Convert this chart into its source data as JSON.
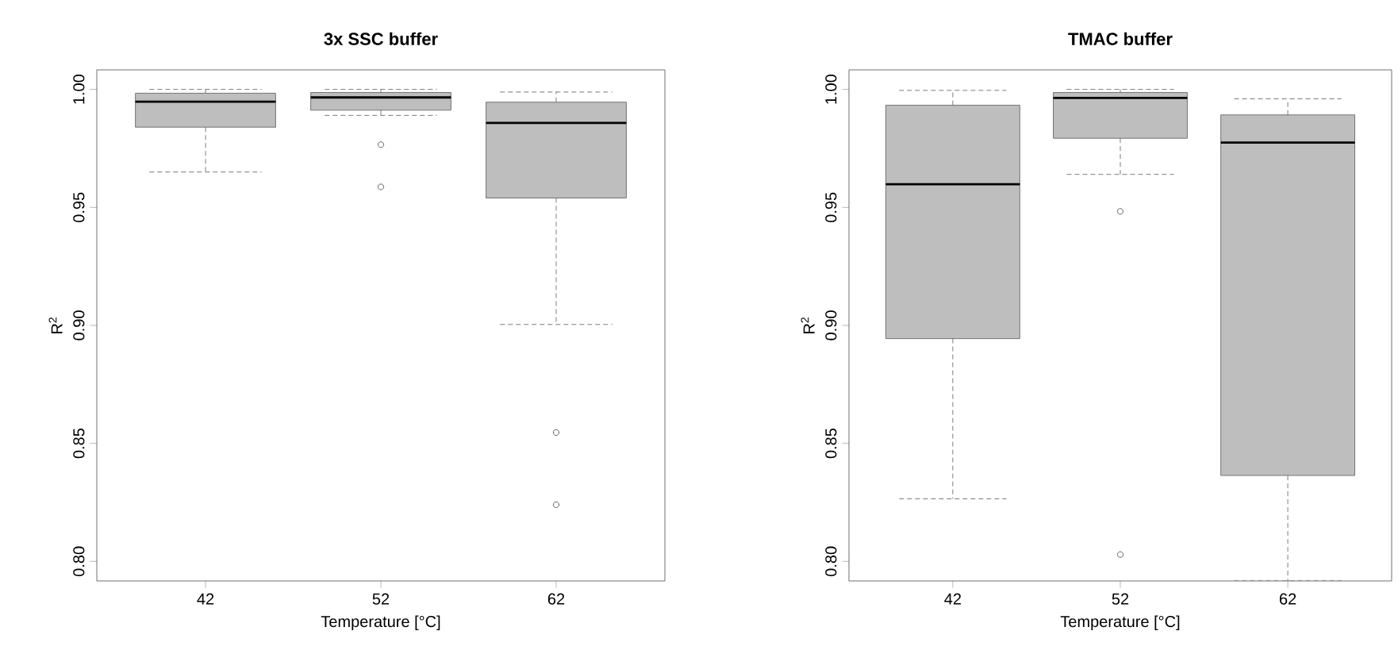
{
  "chart_data": [
    {
      "type": "box",
      "title": "3x SSC buffer",
      "xlabel": "Temperature [°C]",
      "ylabel": "R$^{2}$",
      "categories": [
        "42",
        "52",
        "62"
      ],
      "color": "#bebebe",
      "ylim": [
        0.7917,
        1.0083
      ],
      "yticks": [
        {
          "value": 0.8,
          "label": "0.80"
        },
        {
          "value": 0.85,
          "label": "0.85"
        },
        {
          "value": 0.9,
          "label": "0.90"
        },
        {
          "value": 0.95,
          "label": "0.95"
        },
        {
          "value": 1.0,
          "label": "1.00"
        }
      ],
      "boxes": [
        {
          "low": 0.965,
          "q1": 0.984,
          "median": 0.9948,
          "q3": 0.9984,
          "high": 1.0
        },
        {
          "low": 0.989,
          "q1": 0.9912,
          "median": 0.9966,
          "q3": 0.9987,
          "high": 1.0,
          "outliers": [
            0.9766,
            0.9587
          ]
        },
        {
          "low": 0.9004,
          "q1": 0.954,
          "median": 0.9858,
          "q3": 0.9946,
          "high": 0.9989,
          "outliers": [
            0.8546,
            0.824
          ]
        }
      ]
    },
    {
      "type": "box",
      "title": "TMAC buffer",
      "xlabel": "Temperature [°C]",
      "ylabel": "R$^{2}$",
      "categories": [
        "42",
        "52",
        "62"
      ],
      "color": "#bebebe",
      "ylim": [
        0.7917,
        1.0083
      ],
      "yticks": [
        {
          "value": 0.8,
          "label": "0.80"
        },
        {
          "value": 0.85,
          "label": "0.85"
        },
        {
          "value": 0.9,
          "label": "0.90"
        },
        {
          "value": 0.95,
          "label": "0.95"
        },
        {
          "value": 1.0,
          "label": "1.00"
        }
      ],
      "boxes": [
        {
          "low": 0.8265,
          "q1": 0.8944,
          "median": 0.9598,
          "q3": 0.9933,
          "high": 0.9996
        },
        {
          "low": 0.964,
          "q1": 0.9793,
          "median": 0.9964,
          "q3": 0.9987,
          "high": 1.0,
          "outliers": [
            0.9483,
            0.8029
          ]
        },
        {
          "low": 0.7917,
          "q1": 0.8364,
          "median": 0.9775,
          "q3": 0.9892,
          "high": 0.996
        }
      ]
    }
  ]
}
